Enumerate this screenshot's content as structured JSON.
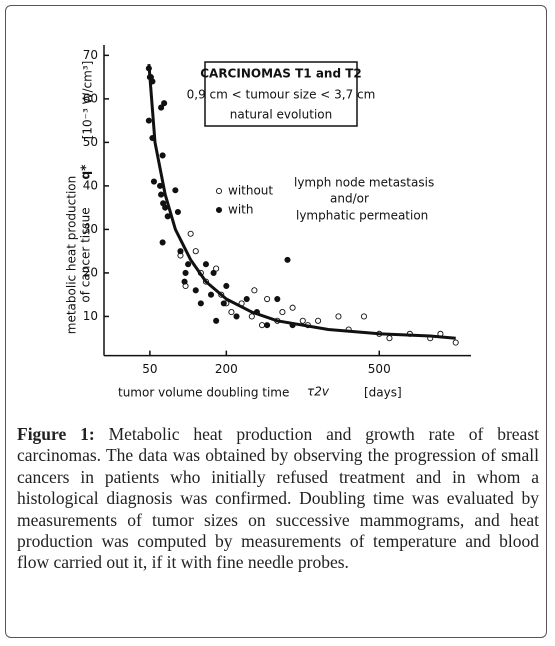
{
  "chart_data": {
    "type": "scatter",
    "annotation_box": [
      "CARCINOMAS T1 and T2",
      "0,9 cm < tumour size < 3,7 cm",
      "natural evolution"
    ],
    "legend_note": [
      "lymph node metastasis",
      "and/or",
      "lymphatic permeation"
    ],
    "ylabel": [
      "metabolic heat production",
      "of cancer tissue",
      "q*",
      "[10⁻³ W/cm³]"
    ],
    "xlabel": [
      "tumor volume doubling time",
      "τ2v",
      "[days]"
    ],
    "xlim": [
      -40,
      680
    ],
    "xticks": [
      50,
      200,
      500
    ],
    "ylim": [
      1,
      71
    ],
    "yticks": [
      10,
      20,
      30,
      40,
      50,
      60,
      70
    ],
    "series": [
      {
        "name": "without",
        "marker": "open",
        "color": "#111",
        "x": [
          110,
          120,
          130,
          140,
          150,
          160,
          180,
          190,
          200,
          210,
          230,
          250,
          255,
          270,
          280,
          300,
          310,
          330,
          350,
          360,
          380,
          420,
          440,
          470,
          500,
          520,
          560,
          600,
          620,
          650
        ],
        "values": [
          24,
          17,
          29,
          25,
          20,
          18,
          21,
          15,
          13,
          11,
          13,
          10,
          16,
          8,
          14,
          9,
          11,
          12,
          9,
          8,
          9,
          10,
          7,
          10,
          6,
          5,
          6,
          5,
          6,
          4
        ]
      },
      {
        "name": "with",
        "marker": "filled",
        "color": "#111",
        "x": [
          48,
          50,
          52,
          55,
          48,
          55,
          58,
          75,
          78,
          72,
          70,
          72,
          76,
          80,
          75,
          85,
          100,
          105,
          110,
          120,
          125,
          118,
          140,
          150,
          160,
          170,
          175,
          180,
          195,
          200,
          220,
          240,
          260,
          280,
          300,
          320,
          330
        ],
        "values": [
          67,
          65,
          65,
          64,
          55,
          51,
          41,
          47,
          59,
          58,
          40,
          38,
          36,
          35,
          27,
          33,
          39,
          34,
          25,
          20,
          22,
          18,
          16,
          13,
          22,
          15,
          20,
          9,
          13,
          17,
          10,
          14,
          11,
          8,
          14,
          23,
          8
        ]
      }
    ],
    "curve": {
      "color": "#111",
      "x": [
        48,
        60,
        80,
        100,
        130,
        160,
        200,
        250,
        300,
        400,
        500,
        600,
        650
      ],
      "values": [
        68,
        50,
        38,
        30,
        23,
        18,
        14,
        11,
        9,
        7,
        6,
        5.5,
        5
      ]
    }
  },
  "caption": {
    "label": "Figure 1:",
    "text": "Metabolic heat production and growth rate of breast carcinomas. The data was obtained by observing the progression of small cancers in patients who initially refused treatment and in whom a histological diagnosis was confirmed. Doubling time was evaluated by measurements of tumor sizes on successive mammograms, and heat production was computed by measurements of temperature and blood flow carried out it, if it with fine needle probes."
  }
}
